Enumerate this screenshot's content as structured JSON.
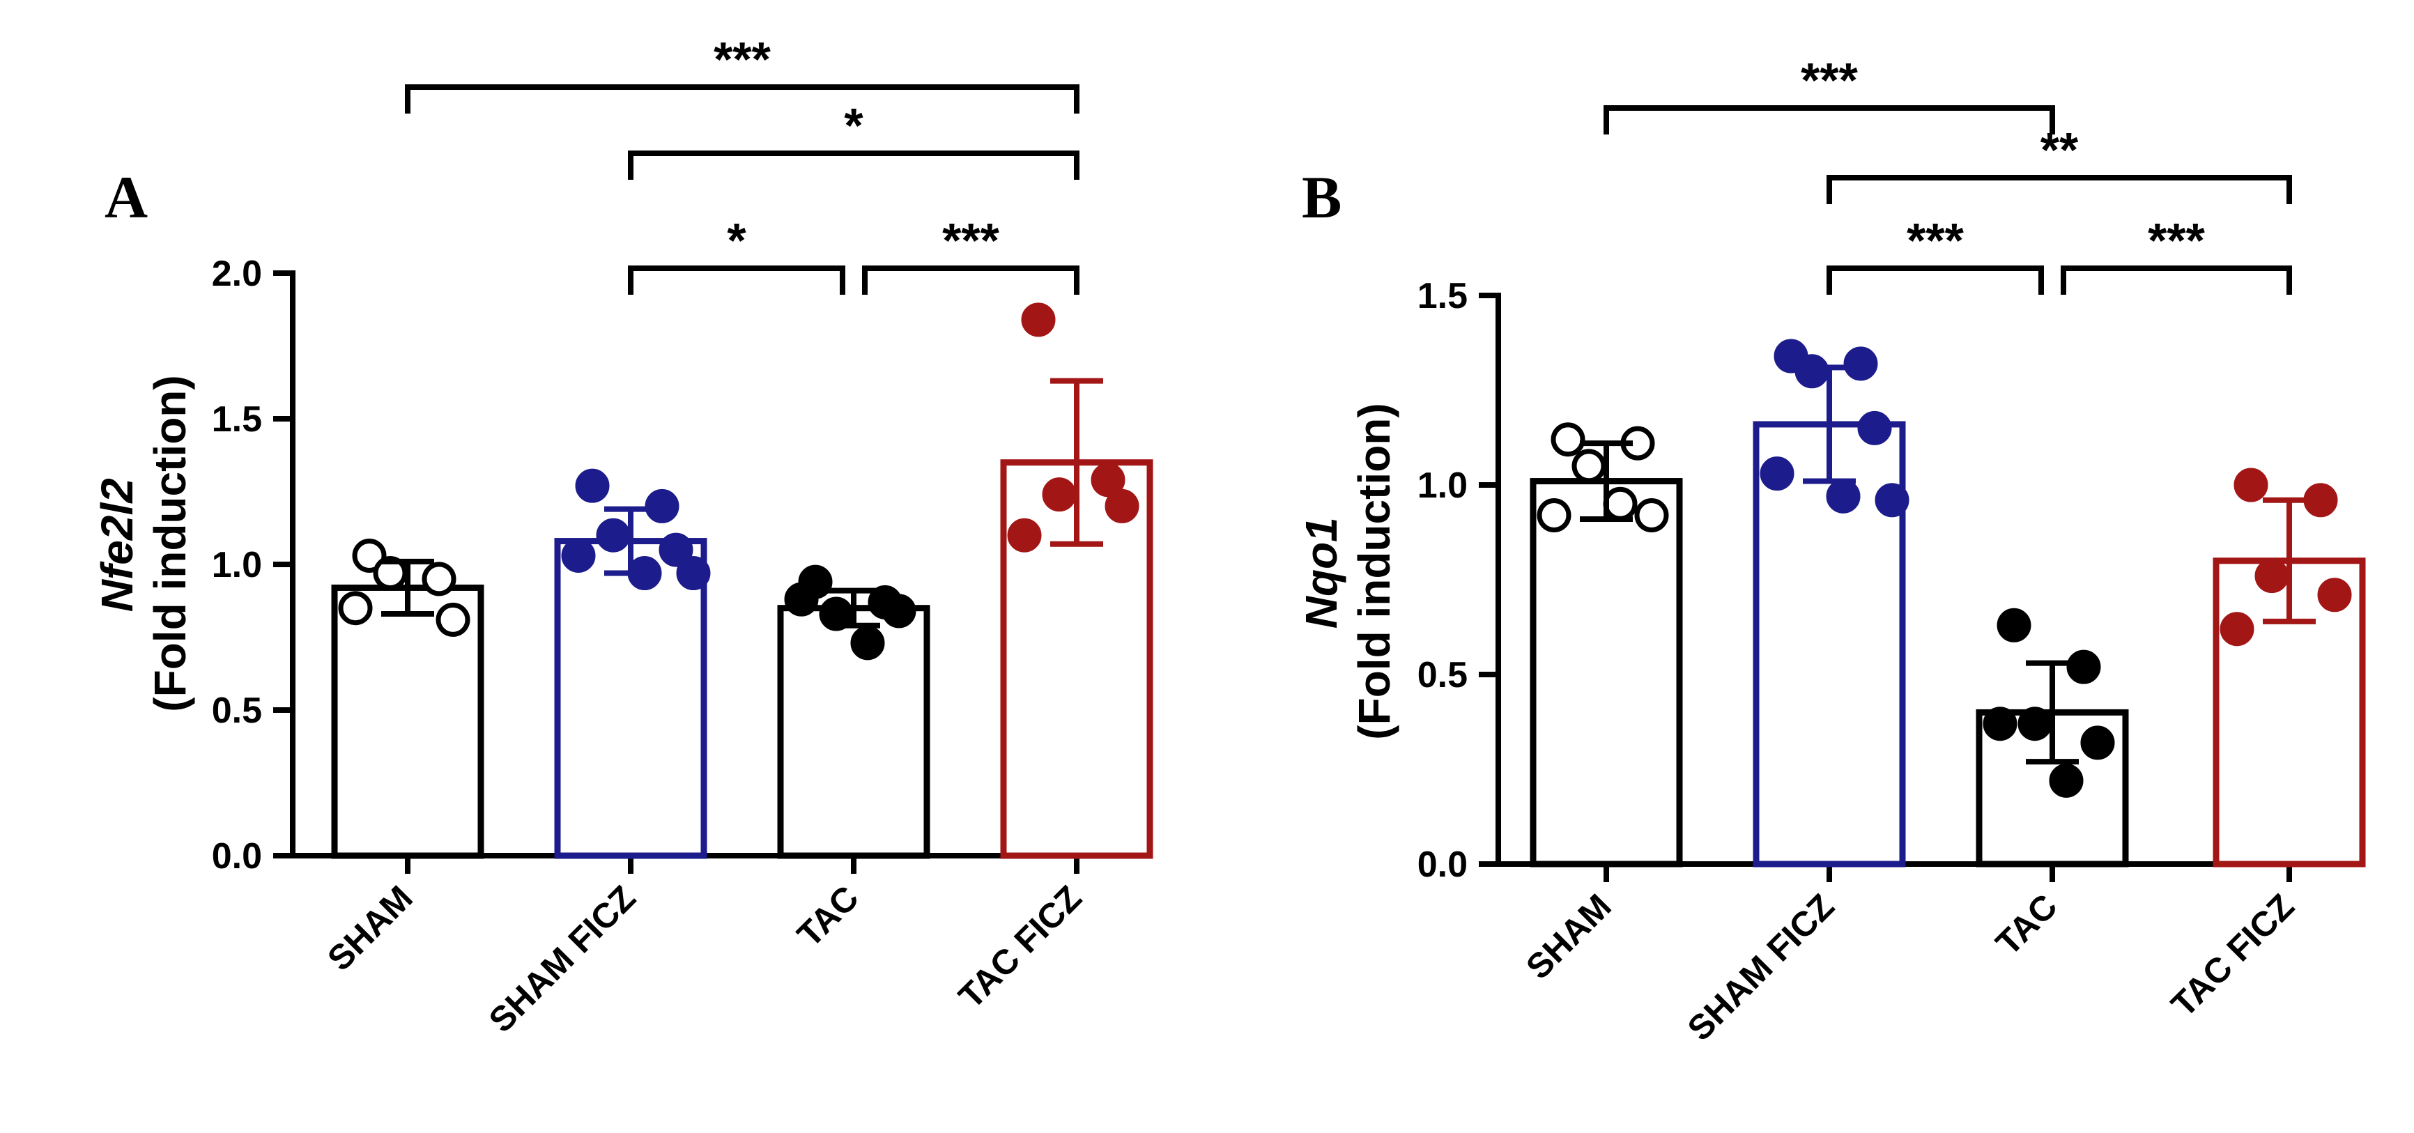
{
  "chart_data": [
    {
      "type": "bar",
      "panel": "A",
      "gene": "Nfe2l2",
      "ylabel": "(Fold induction)",
      "categories": [
        "SHAM",
        "SHAM FICZ",
        "TAC",
        "TAC FICZ"
      ],
      "colors": [
        "#000000",
        "#1c1c8c",
        "#000000",
        "#a31616"
      ],
      "point_fill": [
        "#ffffff",
        "#1c1c8c",
        "#000000",
        "#a31616"
      ],
      "values": [
        0.92,
        1.08,
        0.85,
        1.35
      ],
      "errors": [
        0.09,
        0.11,
        0.06,
        0.28
      ],
      "points": [
        [
          1.03,
          0.95,
          0.97,
          0.81,
          0.85
        ],
        [
          1.27,
          1.2,
          1.1,
          1.05,
          1.03,
          0.97,
          0.97
        ],
        [
          0.94,
          0.87,
          0.83,
          0.84,
          0.88,
          0.73
        ],
        [
          1.84,
          1.29,
          1.24,
          1.2,
          1.1
        ]
      ],
      "ylim": [
        0,
        2.0
      ],
      "yticks": [
        "0.0",
        "0.5",
        "1.0",
        "1.5",
        "2.0"
      ],
      "yticks_values": [
        0,
        0.5,
        1.0,
        1.5,
        2.0
      ],
      "significance": [
        {
          "from": 0,
          "to": 3,
          "label": "***",
          "level": 2
        },
        {
          "from": 1,
          "to": 3,
          "label": "*",
          "level": 1
        },
        {
          "from": 1,
          "to": 2,
          "label": "*",
          "level": 0
        },
        {
          "from": 2,
          "to": 3,
          "label": "***",
          "level": 0
        }
      ]
    },
    {
      "type": "bar",
      "panel": "B",
      "gene": "Nqo1",
      "ylabel": "(Fold induction)",
      "categories": [
        "SHAM",
        "SHAM FICZ",
        "TAC",
        "TAC FICZ"
      ],
      "colors": [
        "#000000",
        "#1c1c8c",
        "#000000",
        "#a31616"
      ],
      "point_fill": [
        "#ffffff",
        "#1c1c8c",
        "#000000",
        "#a31616"
      ],
      "values": [
        1.01,
        1.16,
        0.4,
        0.8
      ],
      "errors": [
        0.1,
        0.15,
        0.13,
        0.16
      ],
      "points": [
        [
          1.12,
          1.11,
          1.05,
          0.92,
          0.92,
          0.95
        ],
        [
          1.34,
          1.32,
          1.3,
          1.15,
          1.03,
          0.97,
          0.96
        ],
        [
          0.63,
          0.52,
          0.37,
          0.32,
          0.37,
          0.22
        ],
        [
          1.0,
          0.96,
          0.76,
          0.71,
          0.62
        ]
      ],
      "ylim": [
        0,
        1.5
      ],
      "yticks": [
        "0.0",
        "0.5",
        "1.0",
        "1.5"
      ],
      "yticks_values": [
        0,
        0.5,
        1.0,
        1.5
      ],
      "significance": [
        {
          "from": 0,
          "to": 2,
          "label": "***",
          "level": 2
        },
        {
          "from": 1,
          "to": 3,
          "label": "**",
          "level": 1
        },
        {
          "from": 1,
          "to": 2,
          "label": "***",
          "level": 0
        },
        {
          "from": 2,
          "to": 3,
          "label": "***",
          "level": 0
        }
      ]
    }
  ]
}
